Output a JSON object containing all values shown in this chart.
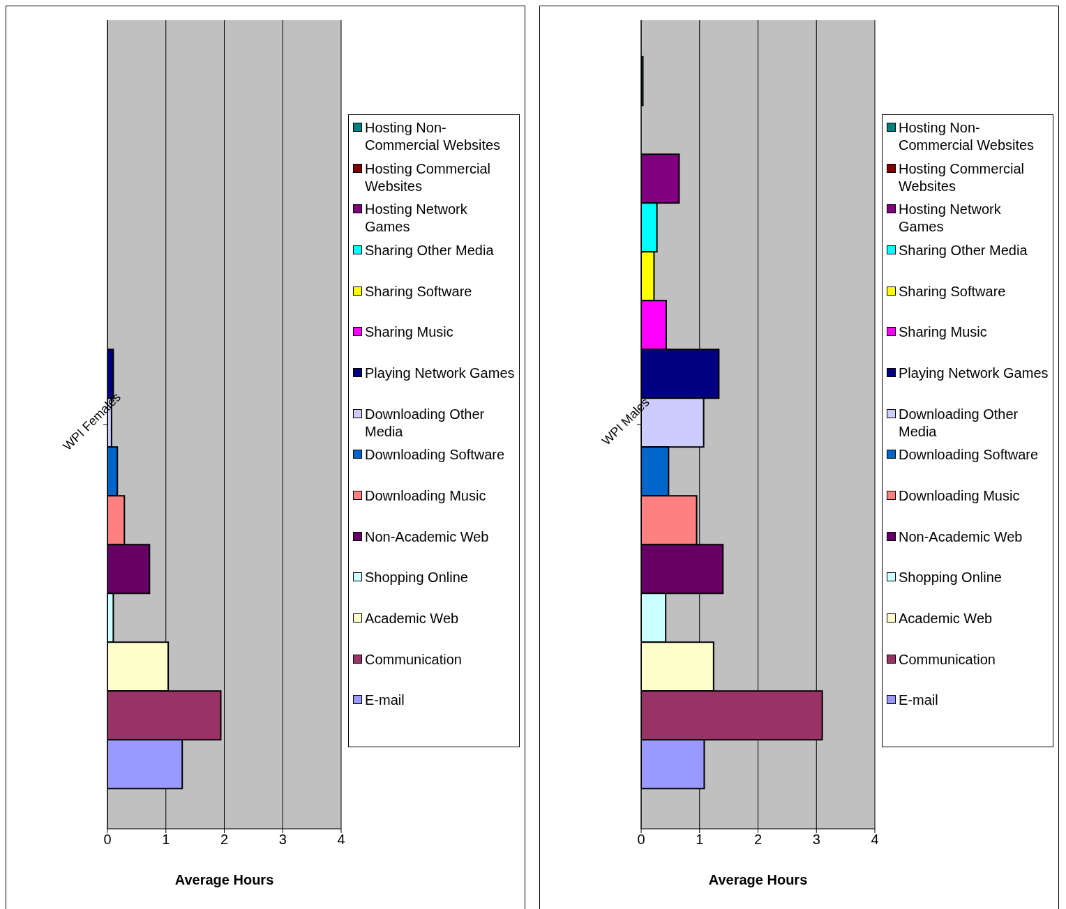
{
  "chart_data": [
    {
      "type": "bar",
      "orientation": "horizontal",
      "categories": [
        "WPI Females"
      ],
      "xlabel": "Average Hours",
      "xlim": [
        0,
        4
      ],
      "xticks": [
        0,
        1,
        2,
        3,
        4
      ],
      "grid": "x",
      "legend": "right",
      "series": [
        {
          "name": "Hosting Non-Commercial Websites",
          "color": "#008080",
          "values": [
            0
          ]
        },
        {
          "name": "Hosting Commercial Websites",
          "color": "#800000",
          "values": [
            0
          ]
        },
        {
          "name": "Hosting Network Games",
          "color": "#800080",
          "values": [
            0
          ]
        },
        {
          "name": "Sharing Other Media",
          "color": "#00ffff",
          "values": [
            0
          ]
        },
        {
          "name": "Sharing Software",
          "color": "#ffff00",
          "values": [
            0
          ]
        },
        {
          "name": "Sharing Music",
          "color": "#ff00ff",
          "values": [
            0
          ]
        },
        {
          "name": "Playing Network Games",
          "color": "#000080",
          "values": [
            0.1
          ]
        },
        {
          "name": "Downloading Other Media",
          "color": "#ccccff",
          "values": [
            0.07
          ]
        },
        {
          "name": "Downloading Software",
          "color": "#0066cc",
          "values": [
            0.17
          ]
        },
        {
          "name": "Downloading Music",
          "color": "#ff8080",
          "values": [
            0.29
          ]
        },
        {
          "name": "Non-Academic Web",
          "color": "#660066",
          "values": [
            0.72
          ]
        },
        {
          "name": "Shopping Online",
          "color": "#ccffff",
          "values": [
            0.1
          ]
        },
        {
          "name": "Academic Web",
          "color": "#ffffcc",
          "values": [
            1.04
          ]
        },
        {
          "name": "Communication",
          "color": "#993366",
          "values": [
            1.94
          ]
        },
        {
          "name": "E-mail",
          "color": "#9999ff",
          "values": [
            1.28
          ]
        }
      ]
    },
    {
      "type": "bar",
      "orientation": "horizontal",
      "categories": [
        "WPI Males"
      ],
      "xlabel": "Average Hours",
      "xlim": [
        0,
        4
      ],
      "xticks": [
        0,
        1,
        2,
        3,
        4
      ],
      "grid": "x",
      "legend": "right",
      "series": [
        {
          "name": "Hosting Non-Commercial Websites",
          "color": "#008080",
          "values": [
            0.03
          ]
        },
        {
          "name": "Hosting Commercial Websites",
          "color": "#800000",
          "values": [
            0
          ]
        },
        {
          "name": "Hosting Network Games",
          "color": "#800080",
          "values": [
            0.65
          ]
        },
        {
          "name": "Sharing Other Media",
          "color": "#00ffff",
          "values": [
            0.27
          ]
        },
        {
          "name": "Sharing Software",
          "color": "#ffff00",
          "values": [
            0.22
          ]
        },
        {
          "name": "Sharing Music",
          "color": "#ff00ff",
          "values": [
            0.43
          ]
        },
        {
          "name": "Playing Network Games",
          "color": "#000080",
          "values": [
            1.33
          ]
        },
        {
          "name": "Downloading Other Media",
          "color": "#ccccff",
          "values": [
            1.07
          ]
        },
        {
          "name": "Downloading Software",
          "color": "#0066cc",
          "values": [
            0.47
          ]
        },
        {
          "name": "Downloading Music",
          "color": "#ff8080",
          "values": [
            0.95
          ]
        },
        {
          "name": "Non-Academic Web",
          "color": "#660066",
          "values": [
            1.4
          ]
        },
        {
          "name": "Shopping Online",
          "color": "#ccffff",
          "values": [
            0.42
          ]
        },
        {
          "name": "Academic Web",
          "color": "#ffffcc",
          "values": [
            1.24
          ]
        },
        {
          "name": "Communication",
          "color": "#993366",
          "values": [
            3.1
          ]
        },
        {
          "name": "E-mail",
          "color": "#9999ff",
          "values": [
            1.08
          ]
        }
      ]
    }
  ]
}
